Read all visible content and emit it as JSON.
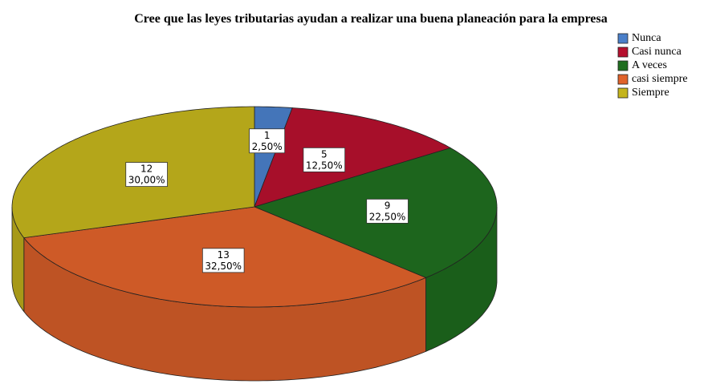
{
  "chart_data": {
    "type": "pie3d",
    "title": "Cree que las leyes tributarias ayudan a realizar una buena planeación para la empresa",
    "categories": [
      "Nunca",
      "Casi nunca",
      "A veces",
      "casi siempre",
      "Siempre"
    ],
    "values": [
      1,
      5,
      9,
      13,
      12
    ],
    "percentages": [
      2.5,
      12.5,
      22.5,
      32.5,
      30
    ],
    "percentage_labels": [
      "2,50%",
      "12,50%",
      "22,50%",
      "32,50%",
      "30,00%"
    ],
    "colors": [
      "#4a7fc9",
      "#b5102e",
      "#1f6e1f",
      "#e0622a",
      "#c4b41c"
    ],
    "legend": "top-right"
  }
}
